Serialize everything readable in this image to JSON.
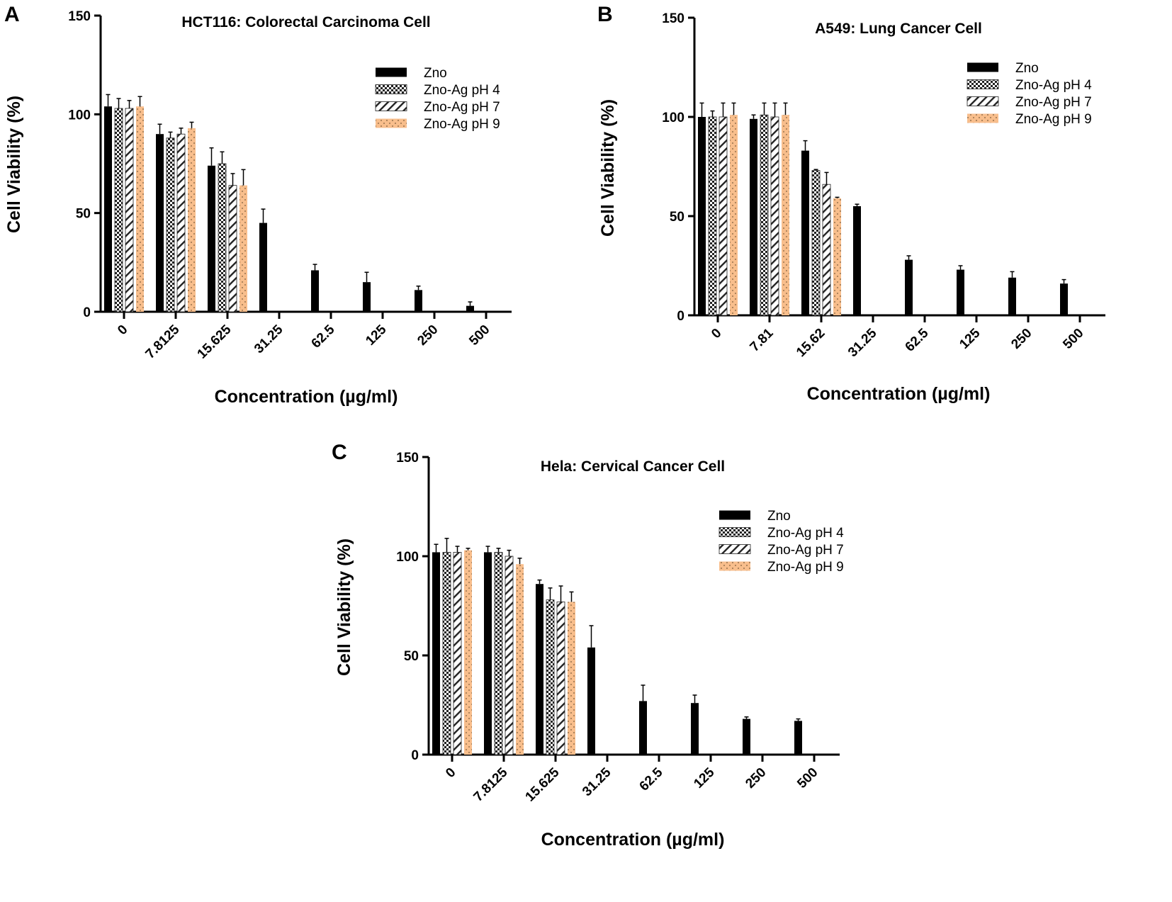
{
  "colors": {
    "zno": "#000000",
    "ph9": "#f8be8c",
    "hatch": "#222222",
    "axis": "#000000"
  },
  "chart_data": [
    {
      "panel": "A",
      "type": "bar",
      "title": "HCT116: Colorectal Carcinoma Cell",
      "xlabel": "Concentration (µg/ml)",
      "ylabel": "Cell Viability (%)",
      "ylim": [
        0,
        150
      ],
      "yticks": [
        "0",
        "50",
        "100",
        "150"
      ],
      "categories": [
        "0",
        "7.8125",
        "15.625",
        "31.25",
        "62.5",
        "125",
        "250",
        "500"
      ],
      "legend_position": "top-right",
      "series": [
        {
          "name": "Zno",
          "pattern": "solid",
          "values": [
            104,
            90,
            74,
            45,
            21,
            15,
            11,
            3
          ],
          "errors": [
            6,
            5,
            9,
            7,
            3,
            5,
            2,
            2
          ]
        },
        {
          "name": "Zno-Ag pH 4",
          "pattern": "checker",
          "values": [
            103,
            88,
            75,
            null,
            null,
            null,
            null,
            null
          ],
          "errors": [
            5,
            3,
            6,
            null,
            null,
            null,
            null,
            null
          ]
        },
        {
          "name": "Zno-Ag pH 7",
          "pattern": "diagonal",
          "values": [
            103,
            90,
            64,
            null,
            null,
            null,
            null,
            null
          ],
          "errors": [
            4,
            3,
            6,
            null,
            null,
            null,
            null,
            null
          ]
        },
        {
          "name": "Zno-Ag pH 9",
          "pattern": "dots",
          "values": [
            104,
            93,
            64,
            null,
            null,
            null,
            null,
            null
          ],
          "errors": [
            5,
            3,
            8,
            null,
            null,
            null,
            null,
            null
          ]
        }
      ]
    },
    {
      "panel": "B",
      "type": "bar",
      "title": "A549: Lung Cancer Cell",
      "xlabel": "Concentration (µg/ml)",
      "ylabel": "Cell Viability (%)",
      "ylim": [
        0,
        150
      ],
      "yticks": [
        "0",
        "50",
        "100",
        "150"
      ],
      "categories": [
        "0",
        "7.81",
        "15.62",
        "31.25",
        "62.5",
        "125",
        "250",
        "500"
      ],
      "legend_position": "top-right",
      "series": [
        {
          "name": "Zno",
          "pattern": "solid",
          "values": [
            100,
            99,
            83,
            55,
            28,
            23,
            19,
            16
          ],
          "errors": [
            7,
            2,
            5,
            1,
            2,
            2,
            3,
            2
          ]
        },
        {
          "name": "Zno-Ag pH 4",
          "pattern": "checker",
          "values": [
            100,
            101,
            73,
            null,
            null,
            null,
            null,
            null
          ],
          "errors": [
            3,
            6,
            0.5,
            null,
            null,
            null,
            null,
            null
          ]
        },
        {
          "name": "Zno-Ag pH 7",
          "pattern": "diagonal",
          "values": [
            100,
            100,
            66,
            null,
            null,
            null,
            null,
            null
          ],
          "errors": [
            7,
            7,
            6,
            null,
            null,
            null,
            null,
            null
          ]
        },
        {
          "name": "Zno-Ag pH 9",
          "pattern": "dots",
          "values": [
            101,
            101,
            59,
            null,
            null,
            null,
            null,
            null
          ],
          "errors": [
            6,
            6,
            0.5,
            null,
            null,
            null,
            null,
            null
          ]
        }
      ]
    },
    {
      "panel": "C",
      "type": "bar",
      "title": "Hela: Cervical Cancer Cell",
      "xlabel": "Concentration (µg/ml)",
      "ylabel": "Cell Viability (%)",
      "ylim": [
        0,
        150
      ],
      "yticks": [
        "0",
        "50",
        "100",
        "150"
      ],
      "categories": [
        "0",
        "7.8125",
        "15.625",
        "31.25",
        "62.5",
        "125",
        "250",
        "500"
      ],
      "legend_position": "top-right",
      "series": [
        {
          "name": "Zno",
          "pattern": "solid",
          "values": [
            102,
            102,
            86,
            54,
            27,
            26,
            18,
            17
          ],
          "errors": [
            4,
            3,
            2,
            11,
            8,
            4,
            1,
            1
          ]
        },
        {
          "name": "Zno-Ag pH 4",
          "pattern": "checker",
          "values": [
            102,
            102,
            78,
            null,
            null,
            null,
            null,
            null
          ],
          "errors": [
            7,
            2,
            6,
            null,
            null,
            null,
            null,
            null
          ]
        },
        {
          "name": "Zno-Ag pH 7",
          "pattern": "diagonal",
          "values": [
            102,
            100,
            77,
            null,
            null,
            null,
            null,
            null
          ],
          "errors": [
            3,
            3,
            8,
            null,
            null,
            null,
            null,
            null
          ]
        },
        {
          "name": "Zno-Ag pH 9",
          "pattern": "dots",
          "values": [
            103,
            96,
            77,
            null,
            null,
            null,
            null,
            null
          ],
          "errors": [
            1,
            3,
            5,
            null,
            null,
            null,
            null,
            null
          ]
        }
      ]
    }
  ]
}
